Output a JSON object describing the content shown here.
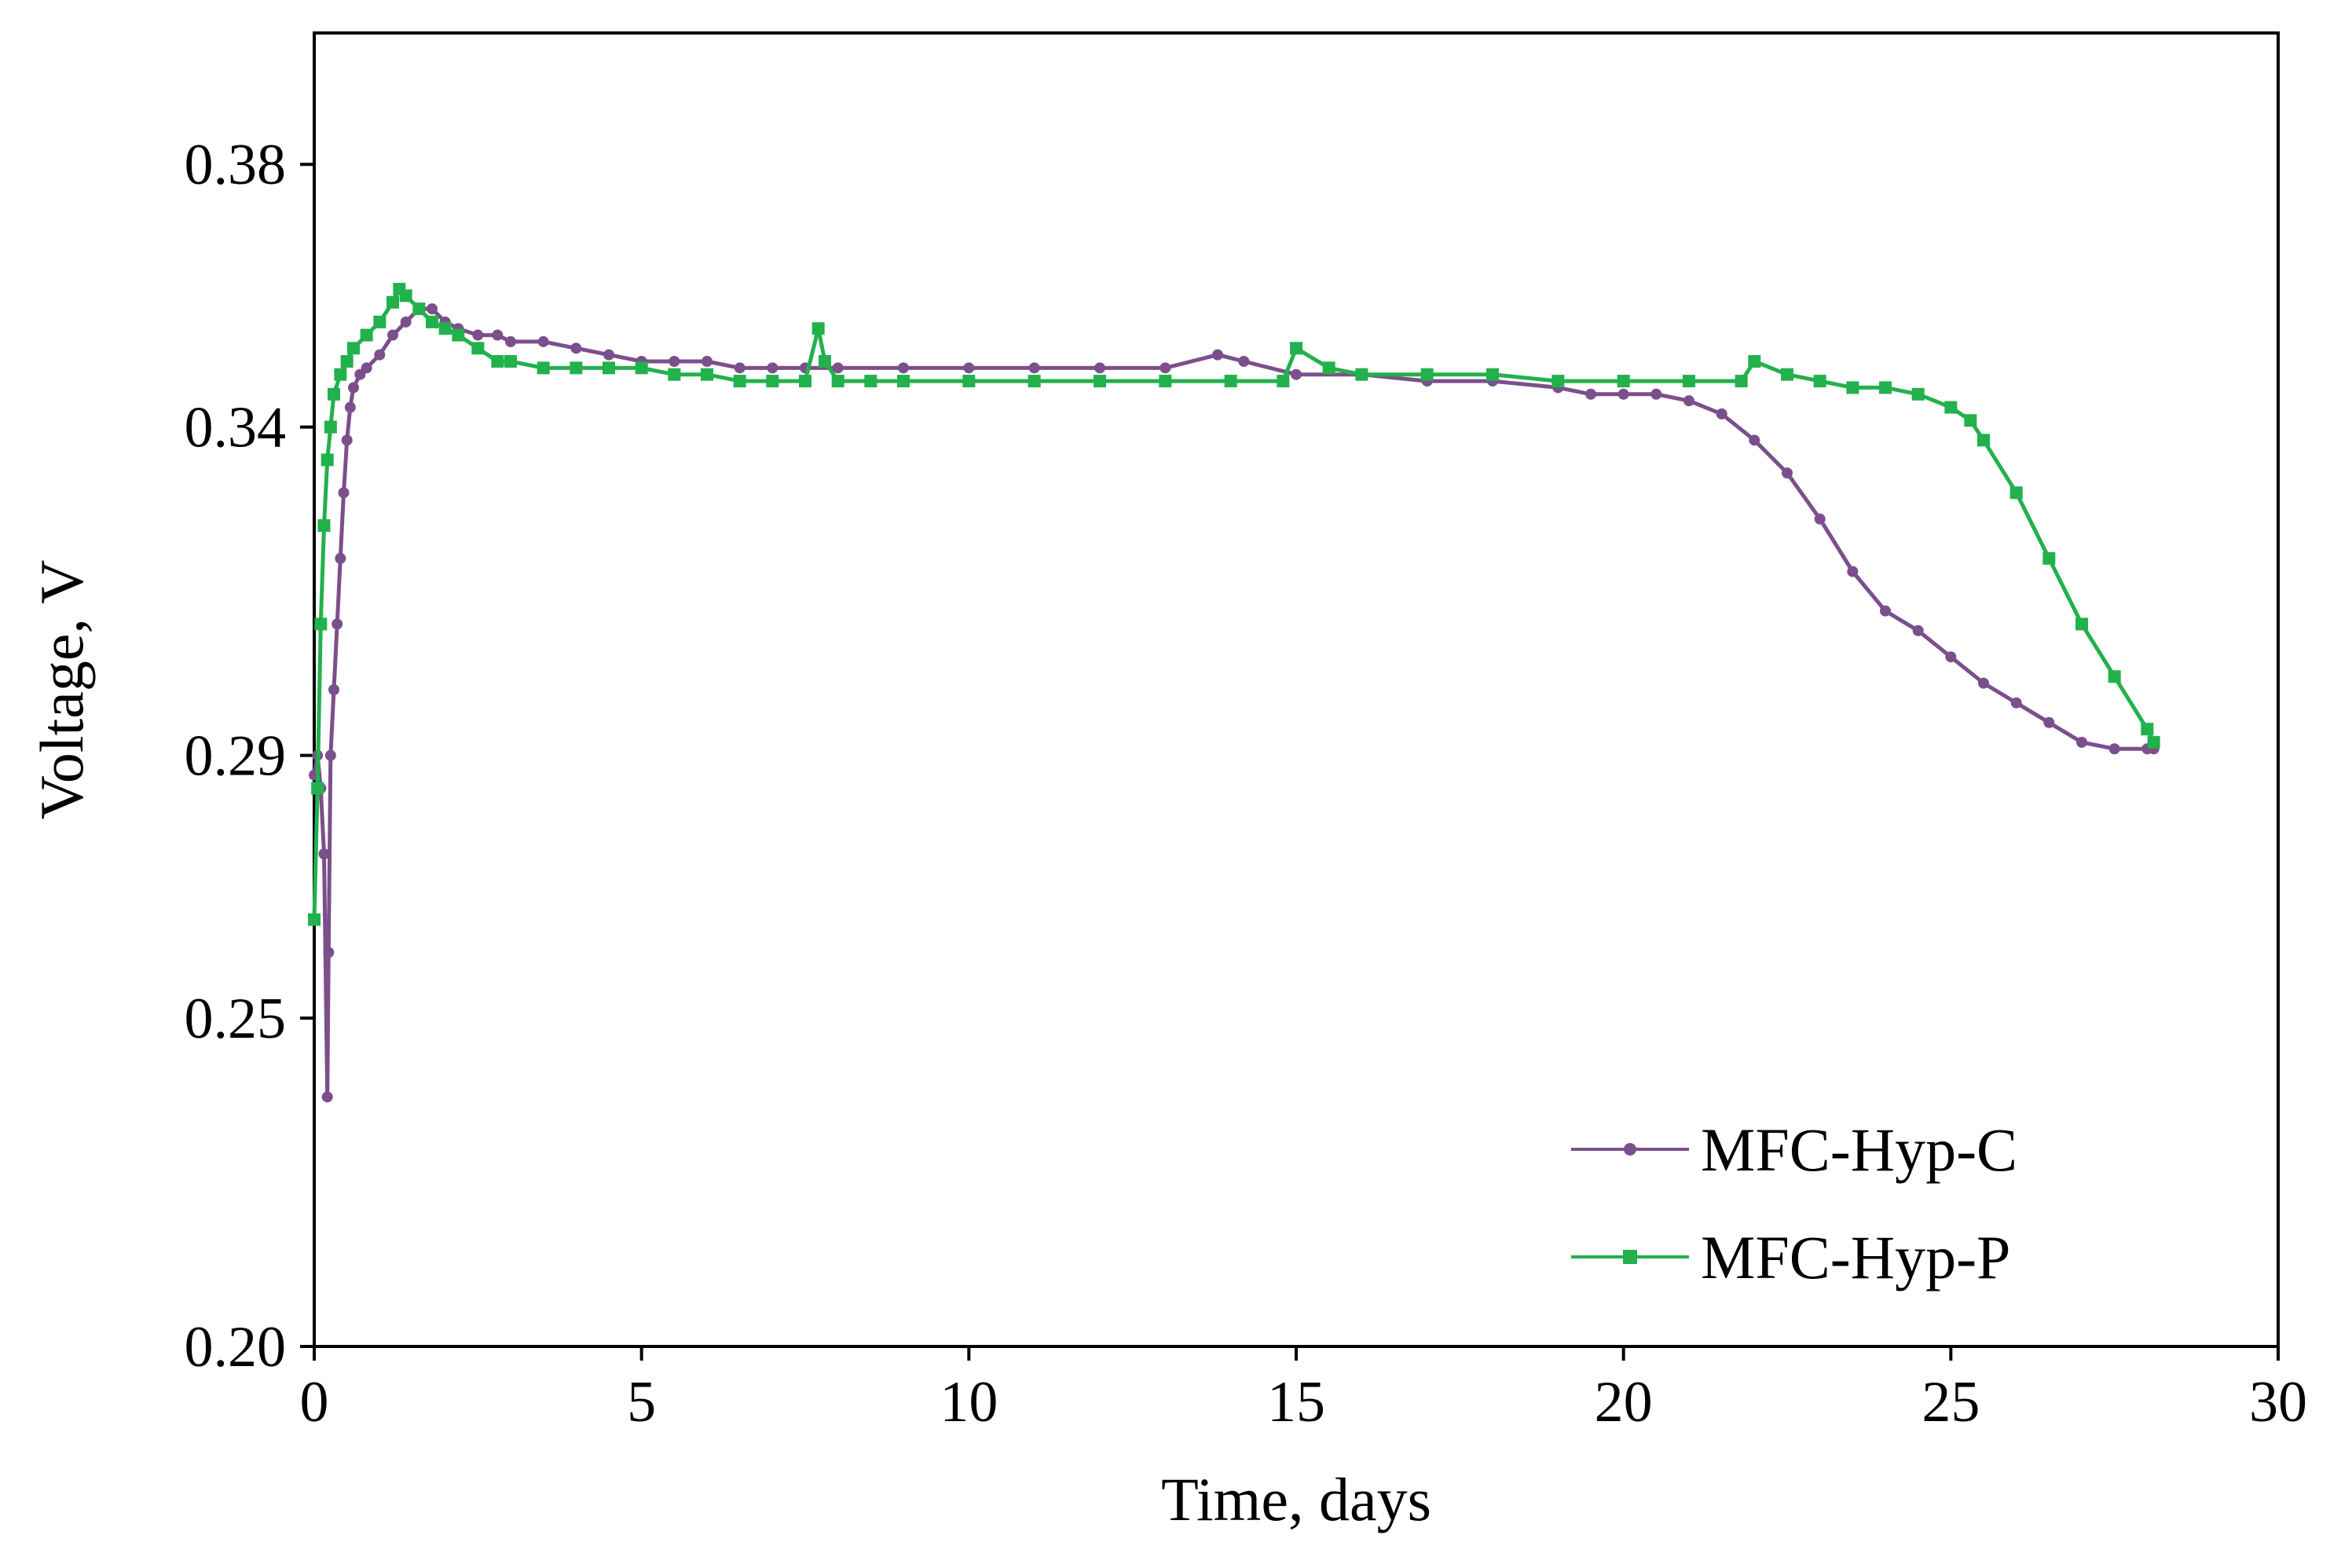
{
  "chart_data": {
    "type": "line",
    "title": "",
    "xlabel": "Time, days",
    "ylabel": "Voltage, V",
    "xlim": [
      0,
      30
    ],
    "ylim": [
      0.2,
      0.4
    ],
    "x_ticks": [
      "0",
      "5",
      "10",
      "15",
      "20",
      "25",
      "30"
    ],
    "y_ticks": [
      "0.20",
      "0.25",
      "0.29",
      "0.34",
      "0.38"
    ],
    "y_tick_values": [
      0.2,
      0.25,
      0.29,
      0.34,
      0.38
    ],
    "grid": false,
    "legend_position": "bottom-right",
    "series": [
      {
        "name": "MFC-Hyp-C",
        "color": "#7b4f8c",
        "marker": "diamond",
        "x": [
          0.0,
          0.05,
          0.1,
          0.15,
          0.2,
          0.22,
          0.25,
          0.3,
          0.35,
          0.4,
          0.45,
          0.5,
          0.55,
          0.6,
          0.7,
          0.8,
          1.0,
          1.2,
          1.4,
          1.6,
          1.8,
          2.0,
          2.2,
          2.5,
          2.8,
          3.0,
          3.5,
          4.0,
          4.5,
          5.0,
          5.5,
          6.0,
          6.5,
          7.0,
          7.5,
          8.0,
          9.0,
          10.0,
          11.0,
          12.0,
          13.0,
          13.8,
          14.2,
          15.0,
          16.0,
          17.0,
          18.0,
          19.0,
          19.5,
          20.0,
          20.5,
          21.0,
          21.5,
          22.0,
          22.5,
          23.0,
          23.5,
          24.0,
          24.5,
          25.0,
          25.5,
          26.0,
          26.5,
          27.0,
          27.5,
          28.0,
          28.1
        ],
        "y": [
          0.287,
          0.29,
          0.285,
          0.275,
          0.238,
          0.26,
          0.29,
          0.3,
          0.31,
          0.32,
          0.33,
          0.338,
          0.343,
          0.346,
          0.348,
          0.349,
          0.351,
          0.354,
          0.356,
          0.358,
          0.358,
          0.356,
          0.355,
          0.354,
          0.354,
          0.353,
          0.353,
          0.352,
          0.351,
          0.35,
          0.35,
          0.35,
          0.349,
          0.349,
          0.349,
          0.349,
          0.349,
          0.349,
          0.349,
          0.349,
          0.349,
          0.351,
          0.35,
          0.348,
          0.348,
          0.347,
          0.347,
          0.346,
          0.345,
          0.345,
          0.345,
          0.344,
          0.342,
          0.338,
          0.333,
          0.326,
          0.318,
          0.312,
          0.309,
          0.305,
          0.301,
          0.298,
          0.295,
          0.292,
          0.291,
          0.291,
          0.291
        ]
      },
      {
        "name": "MFC-Hyp-P",
        "color": "#22b14c",
        "marker": "square",
        "x": [
          0.0,
          0.05,
          0.1,
          0.15,
          0.2,
          0.25,
          0.3,
          0.4,
          0.5,
          0.6,
          0.8,
          1.0,
          1.2,
          1.3,
          1.4,
          1.6,
          1.8,
          2.0,
          2.2,
          2.5,
          2.8,
          3.0,
          3.5,
          4.0,
          4.5,
          5.0,
          5.5,
          6.0,
          6.5,
          7.0,
          7.5,
          7.7,
          7.8,
          8.0,
          8.5,
          9.0,
          10.0,
          11.0,
          12.0,
          13.0,
          14.0,
          14.8,
          15.0,
          15.5,
          16.0,
          17.0,
          18.0,
          19.0,
          20.0,
          21.0,
          21.8,
          22.0,
          22.5,
          23.0,
          23.5,
          24.0,
          24.5,
          25.0,
          25.3,
          25.5,
          26.0,
          26.5,
          27.0,
          27.5,
          28.0,
          28.1
        ],
        "y": [
          0.265,
          0.285,
          0.31,
          0.325,
          0.335,
          0.34,
          0.345,
          0.348,
          0.35,
          0.352,
          0.354,
          0.356,
          0.359,
          0.361,
          0.36,
          0.358,
          0.356,
          0.355,
          0.354,
          0.352,
          0.35,
          0.35,
          0.349,
          0.349,
          0.349,
          0.349,
          0.348,
          0.348,
          0.347,
          0.347,
          0.347,
          0.355,
          0.35,
          0.347,
          0.347,
          0.347,
          0.347,
          0.347,
          0.347,
          0.347,
          0.347,
          0.347,
          0.352,
          0.349,
          0.348,
          0.348,
          0.348,
          0.347,
          0.347,
          0.347,
          0.347,
          0.35,
          0.348,
          0.347,
          0.346,
          0.346,
          0.345,
          0.343,
          0.341,
          0.338,
          0.33,
          0.32,
          0.31,
          0.302,
          0.294,
          0.292
        ]
      }
    ]
  }
}
